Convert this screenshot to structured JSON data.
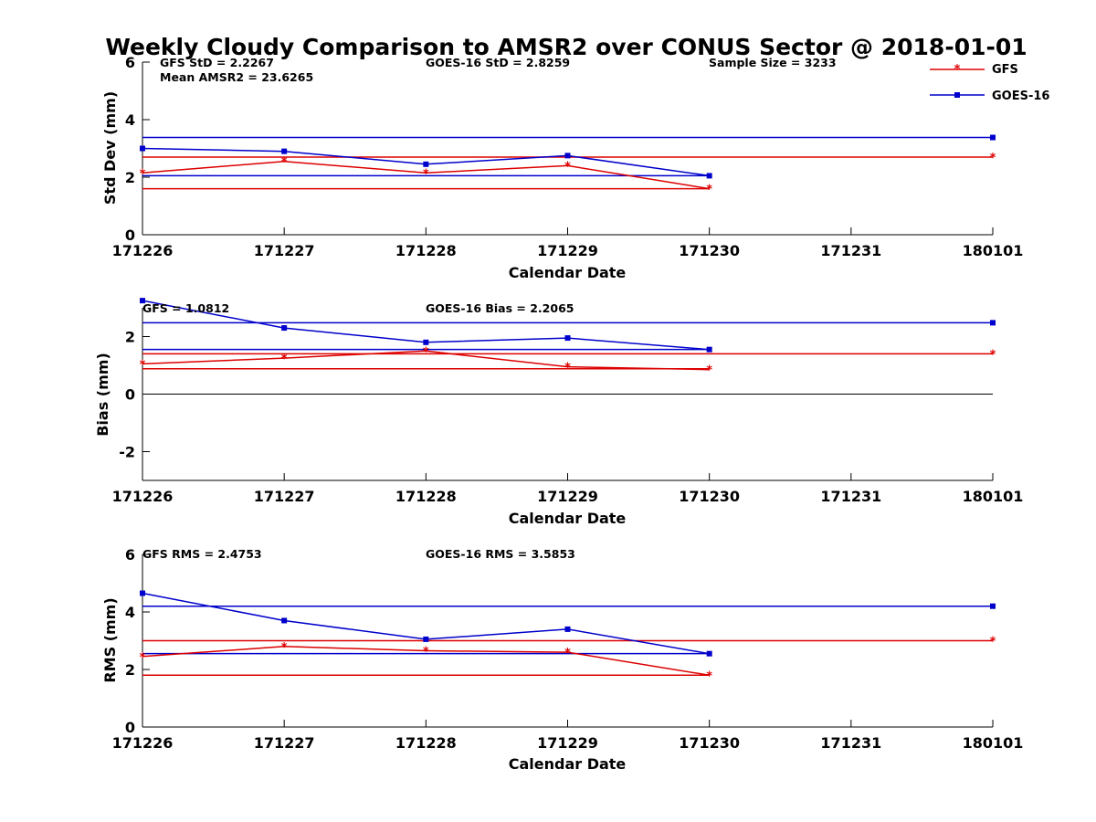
{
  "chart_data": {
    "title": "Weekly Cloudy Comparison to AMSR2 over CONUS Sector @ 2018-01-01",
    "type": "line",
    "x_categories": [
      "171226",
      "171227",
      "171228",
      "171229",
      "171230",
      "171231",
      "180101"
    ],
    "xlabel": "Calendar Date",
    "legend": [
      {
        "name": "GFS",
        "color": "#dd0000",
        "marker": "*"
      },
      {
        "name": "GOES-16",
        "color": "#0000cc",
        "marker": "square"
      }
    ],
    "panels": [
      {
        "name": "stddev",
        "ylabel": "Std Dev (mm)",
        "ylim": [
          0,
          6
        ],
        "yticks": [
          "0",
          "2",
          "4",
          "6"
        ],
        "annotations": {
          "gfs": "GFS StD = 2.2267",
          "goes": "GOES-16 StD = 2.8259",
          "sample": "Sample Size = 3233",
          "mean": "Mean AMSR2 = 23.6265"
        },
        "series": [
          {
            "name": "GFS",
            "color": "#dd0000",
            "x": [
              0,
              1,
              2,
              3,
              4
            ],
            "values": [
              2.15,
              2.55,
              2.15,
              2.4,
              1.6
            ]
          },
          {
            "name": "GOES-16",
            "color": "#0000cc",
            "x": [
              0,
              1,
              2,
              3,
              4
            ],
            "values": [
              3.0,
              2.9,
              2.45,
              2.75,
              2.05
            ]
          }
        ],
        "hlines": [
          {
            "color": "#dd0000",
            "from": 0,
            "to": 6,
            "value": 2.7,
            "end_marker": true
          },
          {
            "color": "#dd0000",
            "from": 0,
            "to": 4,
            "value": 1.6,
            "end_marker": false
          },
          {
            "color": "#0000cc",
            "from": 0,
            "to": 6,
            "value": 3.38,
            "end_marker": true
          },
          {
            "color": "#0000cc",
            "from": 0,
            "to": 4,
            "value": 2.05,
            "end_marker": false
          }
        ]
      },
      {
        "name": "bias",
        "ylabel": "Bias (mm)",
        "ylim": [
          -3,
          3
        ],
        "yticks": [
          "-2",
          "0",
          "2"
        ],
        "zero_line": true,
        "annotations": {
          "gfs": "GFS = 1.0812",
          "goes": "GOES-16 Bias  = 2.2065"
        },
        "series": [
          {
            "name": "GFS",
            "color": "#dd0000",
            "x": [
              0,
              1,
              2,
              3,
              4
            ],
            "values": [
              1.05,
              1.25,
              1.5,
              0.95,
              0.85
            ]
          },
          {
            "name": "GOES-16",
            "color": "#0000cc",
            "x": [
              0,
              1,
              2,
              3,
              4
            ],
            "values": [
              3.25,
              2.3,
              1.8,
              1.95,
              1.55
            ]
          }
        ],
        "hlines": [
          {
            "color": "#dd0000",
            "from": 0,
            "to": 6,
            "value": 1.4,
            "end_marker": true
          },
          {
            "color": "#dd0000",
            "from": 0,
            "to": 4,
            "value": 0.88,
            "end_marker": false
          },
          {
            "color": "#0000cc",
            "from": 0,
            "to": 6,
            "value": 2.48,
            "end_marker": true
          },
          {
            "color": "#0000cc",
            "from": 0,
            "to": 4,
            "value": 1.55,
            "end_marker": false
          }
        ]
      },
      {
        "name": "rms",
        "ylabel": "RMS (mm)",
        "ylim": [
          0,
          6
        ],
        "yticks": [
          "0",
          "2",
          "4",
          "6"
        ],
        "annotations": {
          "gfs": "GFS RMS = 2.4753",
          "goes": "GOES-16 RMS = 3.5853"
        },
        "series": [
          {
            "name": "GFS",
            "color": "#dd0000",
            "x": [
              0,
              1,
              2,
              3,
              4
            ],
            "values": [
              2.45,
              2.8,
              2.65,
              2.6,
              1.8
            ]
          },
          {
            "name": "GOES-16",
            "color": "#0000cc",
            "x": [
              0,
              1,
              2,
              3,
              4
            ],
            "values": [
              4.65,
              3.7,
              3.05,
              3.4,
              2.55
            ]
          }
        ],
        "hlines": [
          {
            "color": "#dd0000",
            "from": 0,
            "to": 6,
            "value": 3.0,
            "end_marker": true
          },
          {
            "color": "#dd0000",
            "from": 0,
            "to": 4,
            "value": 1.8,
            "end_marker": false
          },
          {
            "color": "#0000cc",
            "from": 0,
            "to": 6,
            "value": 4.2,
            "end_marker": true
          },
          {
            "color": "#0000cc",
            "from": 0,
            "to": 4,
            "value": 2.55,
            "end_marker": false
          }
        ]
      }
    ]
  }
}
